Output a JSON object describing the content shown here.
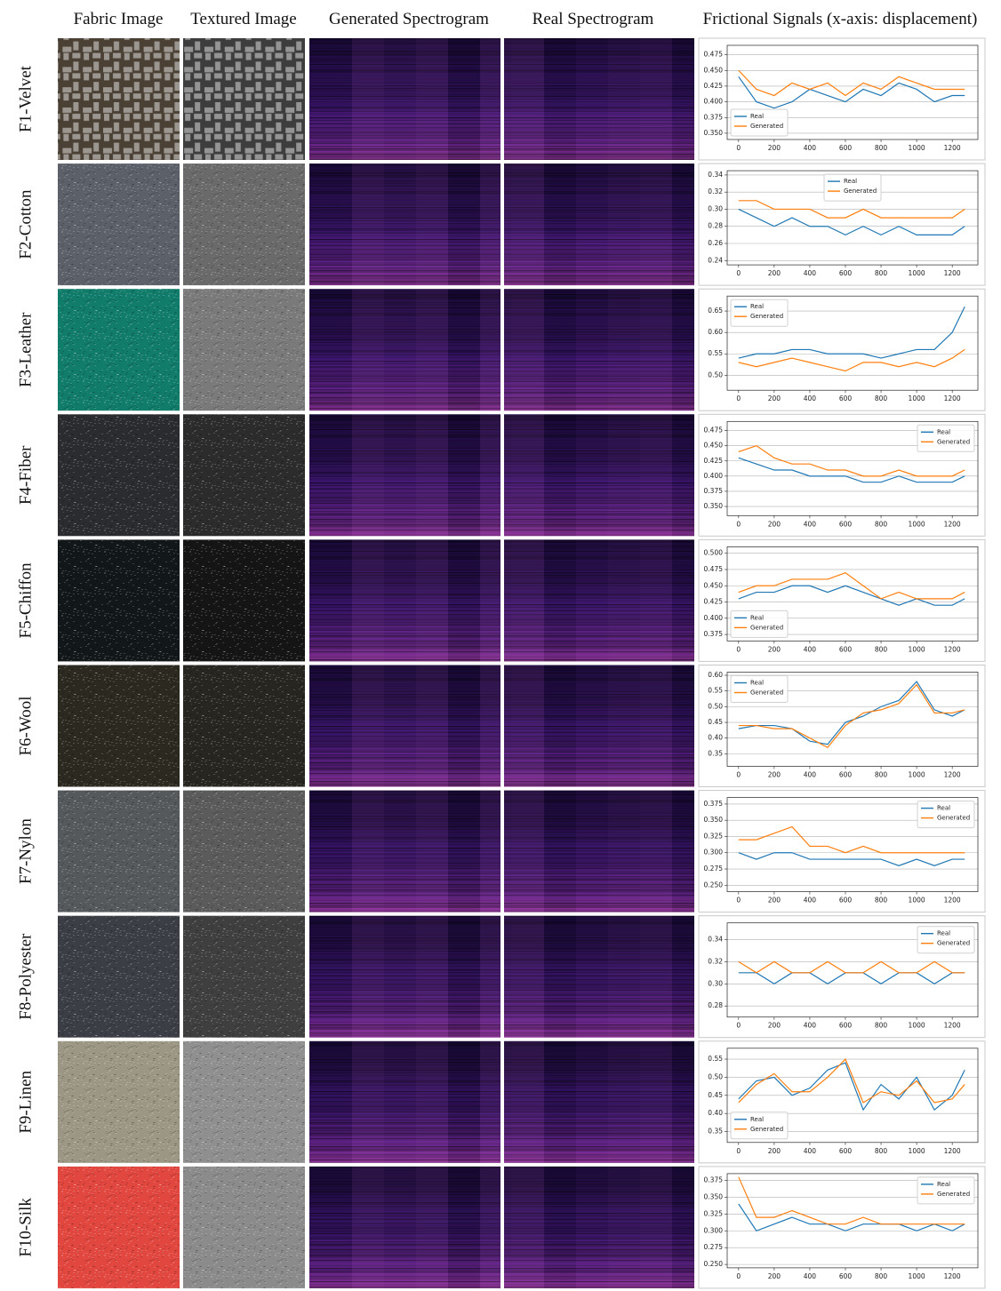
{
  "column_headers": [
    "Fabric Image",
    "Textured Image",
    "Generated Spectrogram",
    "Real Spectrogram",
    "Frictional Signals (x-axis: displacement)"
  ],
  "row_labels": [
    "F1-Velvet",
    "F2-Cotton",
    "F3-Leather",
    "F4-Fiber",
    "F5-Chiffon",
    "F6-Wool",
    "F7-Nylon",
    "F8-Polyester",
    "F9-Linen",
    "F10-Silk"
  ],
  "chart_data": [
    {
      "type": "line",
      "x": [
        0,
        100,
        200,
        300,
        400,
        500,
        600,
        700,
        800,
        900,
        1000,
        1100,
        1200,
        1270
      ],
      "xlim": [
        -64,
        1344
      ],
      "xticks": [
        0,
        200,
        400,
        600,
        800,
        1000,
        1200
      ],
      "ylim": [
        0.34,
        0.49
      ],
      "yticks": [
        {
          "value": 0.35,
          "label": "0.350"
        },
        0.375,
        {
          "value": 0.4,
          "label": "0.400"
        },
        0.425,
        {
          "value": 0.45,
          "label": "0.450"
        },
        0.475
      ],
      "grid": true,
      "legend": "lower left",
      "series": [
        {
          "name": "Real",
          "color": "#1f77b4",
          "values": [
            0.44,
            0.4,
            0.39,
            0.4,
            0.42,
            0.41,
            0.4,
            0.42,
            0.41,
            0.43,
            0.42,
            0.4,
            0.41,
            0.41
          ]
        },
        {
          "name": "Generated",
          "color": "#ff7f0e",
          "values": [
            0.45,
            0.42,
            0.41,
            0.43,
            0.42,
            0.43,
            0.41,
            0.43,
            0.42,
            0.44,
            0.43,
            0.42,
            0.42,
            0.42
          ]
        }
      ]
    },
    {
      "type": "line",
      "x": [
        0,
        100,
        200,
        300,
        400,
        500,
        600,
        700,
        800,
        900,
        1000,
        1100,
        1200,
        1270
      ],
      "xlim": [
        -64,
        1344
      ],
      "xticks": [
        0,
        200,
        400,
        600,
        800,
        1000,
        1200
      ],
      "ylim": [
        0.235,
        0.345
      ],
      "yticks": [
        0.24,
        0.26,
        0.28,
        {
          "value": 0.3,
          "label": "0.30"
        },
        0.32,
        0.34
      ],
      "grid": true,
      "legend": "upper center",
      "series": [
        {
          "name": "Real",
          "color": "#1f77b4",
          "values": [
            0.3,
            0.29,
            0.28,
            0.29,
            0.28,
            0.28,
            0.27,
            0.28,
            0.27,
            0.28,
            0.27,
            0.27,
            0.27,
            0.28
          ]
        },
        {
          "name": "Generated",
          "color": "#ff7f0e",
          "values": [
            0.31,
            0.31,
            0.3,
            0.3,
            0.3,
            0.29,
            0.29,
            0.3,
            0.29,
            0.29,
            0.29,
            0.29,
            0.29,
            0.3
          ]
        }
      ]
    },
    {
      "type": "line",
      "x": [
        0,
        100,
        200,
        300,
        400,
        500,
        600,
        700,
        800,
        900,
        1000,
        1100,
        1200,
        1270
      ],
      "xlim": [
        -64,
        1344
      ],
      "xticks": [
        0,
        200,
        400,
        600,
        800,
        1000,
        1200
      ],
      "ylim": [
        0.465,
        0.685
      ],
      "yticks": [
        {
          "value": 0.5,
          "label": "0.50"
        },
        0.55,
        {
          "value": 0.6,
          "label": "0.60"
        },
        0.65
      ],
      "grid": true,
      "legend": "upper left",
      "series": [
        {
          "name": "Real",
          "color": "#1f77b4",
          "values": [
            0.54,
            0.55,
            0.55,
            0.56,
            0.56,
            0.55,
            0.55,
            0.55,
            0.54,
            0.55,
            0.56,
            0.56,
            0.6,
            0.66
          ]
        },
        {
          "name": "Generated",
          "color": "#ff7f0e",
          "values": [
            0.53,
            0.52,
            0.53,
            0.54,
            0.53,
            0.52,
            0.51,
            0.53,
            0.53,
            0.52,
            0.53,
            0.52,
            0.54,
            0.56
          ]
        }
      ]
    },
    {
      "type": "line",
      "x": [
        0,
        100,
        200,
        300,
        400,
        500,
        600,
        700,
        800,
        900,
        1000,
        1100,
        1200,
        1270
      ],
      "xlim": [
        -64,
        1344
      ],
      "xticks": [
        0,
        200,
        400,
        600,
        800,
        1000,
        1200
      ],
      "ylim": [
        0.335,
        0.49
      ],
      "yticks": [
        {
          "value": 0.35,
          "label": "0.350"
        },
        0.375,
        {
          "value": 0.4,
          "label": "0.400"
        },
        0.425,
        {
          "value": 0.45,
          "label": "0.450"
        },
        0.475
      ],
      "grid": true,
      "legend": "upper right",
      "series": [
        {
          "name": "Real",
          "color": "#1f77b4",
          "values": [
            0.43,
            0.42,
            0.41,
            0.41,
            0.4,
            0.4,
            0.4,
            0.39,
            0.39,
            0.4,
            0.39,
            0.39,
            0.39,
            0.4
          ]
        },
        {
          "name": "Generated",
          "color": "#ff7f0e",
          "values": [
            0.44,
            0.45,
            0.43,
            0.42,
            0.42,
            0.41,
            0.41,
            0.4,
            0.4,
            0.41,
            0.4,
            0.4,
            0.4,
            0.41
          ]
        }
      ]
    },
    {
      "type": "line",
      "x": [
        0,
        100,
        200,
        300,
        400,
        500,
        600,
        700,
        800,
        900,
        1000,
        1100,
        1200,
        1270
      ],
      "xlim": [
        -64,
        1344
      ],
      "xticks": [
        0,
        200,
        400,
        600,
        800,
        1000,
        1200
      ],
      "ylim": [
        0.365,
        0.51
      ],
      "yticks": [
        0.375,
        {
          "value": 0.4,
          "label": "0.400"
        },
        0.425,
        {
          "value": 0.45,
          "label": "0.450"
        },
        0.475,
        {
          "value": 0.5,
          "label": "0.500"
        }
      ],
      "grid": true,
      "legend": "lower left",
      "series": [
        {
          "name": "Real",
          "color": "#1f77b4",
          "values": [
            0.43,
            0.44,
            0.44,
            0.45,
            0.45,
            0.44,
            0.45,
            0.44,
            0.43,
            0.42,
            0.43,
            0.42,
            0.42,
            0.43
          ]
        },
        {
          "name": "Generated",
          "color": "#ff7f0e",
          "values": [
            0.44,
            0.45,
            0.45,
            0.46,
            0.46,
            0.46,
            0.47,
            0.45,
            0.43,
            0.44,
            0.43,
            0.43,
            0.43,
            0.44
          ]
        }
      ]
    },
    {
      "type": "line",
      "x": [
        0,
        100,
        200,
        300,
        400,
        500,
        600,
        700,
        800,
        900,
        1000,
        1100,
        1200,
        1270
      ],
      "xlim": [
        -64,
        1344
      ],
      "xticks": [
        0,
        200,
        400,
        600,
        800,
        1000,
        1200
      ],
      "ylim": [
        0.31,
        0.61
      ],
      "yticks": [
        0.35,
        {
          "value": 0.4,
          "label": "0.40"
        },
        0.45,
        {
          "value": 0.5,
          "label": "0.50"
        },
        0.55,
        {
          "value": 0.6,
          "label": "0.60"
        }
      ],
      "grid": true,
      "legend": "upper left",
      "series": [
        {
          "name": "Real",
          "color": "#1f77b4",
          "values": [
            0.43,
            0.44,
            0.44,
            0.43,
            0.39,
            0.38,
            0.45,
            0.47,
            0.5,
            0.52,
            0.58,
            0.49,
            0.47,
            0.49
          ]
        },
        {
          "name": "Generated",
          "color": "#ff7f0e",
          "values": [
            0.44,
            0.44,
            0.43,
            0.43,
            0.4,
            0.37,
            0.44,
            0.48,
            0.49,
            0.51,
            0.57,
            0.48,
            0.48,
            0.49
          ]
        }
      ]
    },
    {
      "type": "line",
      "x": [
        0,
        100,
        200,
        300,
        400,
        500,
        600,
        700,
        800,
        900,
        1000,
        1100,
        1200,
        1270
      ],
      "xlim": [
        -64,
        1344
      ],
      "xticks": [
        0,
        200,
        400,
        600,
        800,
        1000,
        1200
      ],
      "ylim": [
        0.24,
        0.385
      ],
      "yticks": [
        {
          "value": 0.25,
          "label": "0.250"
        },
        0.275,
        {
          "value": 0.3,
          "label": "0.300"
        },
        0.325,
        {
          "value": 0.35,
          "label": "0.350"
        },
        0.375
      ],
      "grid": true,
      "legend": "upper right",
      "series": [
        {
          "name": "Real",
          "color": "#1f77b4",
          "values": [
            0.3,
            0.29,
            0.3,
            0.3,
            0.29,
            0.29,
            0.29,
            0.29,
            0.29,
            0.28,
            0.29,
            0.28,
            0.29,
            0.29
          ]
        },
        {
          "name": "Generated",
          "color": "#ff7f0e",
          "values": [
            0.32,
            0.32,
            0.33,
            0.34,
            0.31,
            0.31,
            0.3,
            0.31,
            0.3,
            0.3,
            0.3,
            0.3,
            0.3,
            0.3
          ]
        }
      ]
    },
    {
      "type": "line",
      "x": [
        0,
        100,
        200,
        300,
        400,
        500,
        600,
        700,
        800,
        900,
        1000,
        1100,
        1200,
        1270
      ],
      "xlim": [
        -64,
        1344
      ],
      "xticks": [
        0,
        200,
        400,
        600,
        800,
        1000,
        1200
      ],
      "ylim": [
        0.27,
        0.355
      ],
      "yticks": [
        0.28,
        {
          "value": 0.3,
          "label": "0.30"
        },
        0.32,
        0.34
      ],
      "grid": true,
      "legend": "upper right",
      "series": [
        {
          "name": "Real",
          "color": "#1f77b4",
          "values": [
            0.31,
            0.31,
            0.3,
            0.31,
            0.31,
            0.3,
            0.31,
            0.31,
            0.3,
            0.31,
            0.31,
            0.3,
            0.31,
            0.31
          ]
        },
        {
          "name": "Generated",
          "color": "#ff7f0e",
          "values": [
            0.32,
            0.31,
            0.32,
            0.31,
            0.31,
            0.32,
            0.31,
            0.31,
            0.32,
            0.31,
            0.31,
            0.32,
            0.31,
            0.31
          ]
        }
      ]
    },
    {
      "type": "line",
      "x": [
        0,
        100,
        200,
        300,
        400,
        500,
        600,
        700,
        800,
        900,
        1000,
        1100,
        1200,
        1270
      ],
      "xlim": [
        -64,
        1344
      ],
      "xticks": [
        0,
        200,
        400,
        600,
        800,
        1000,
        1200
      ],
      "ylim": [
        0.32,
        0.58
      ],
      "yticks": [
        0.35,
        {
          "value": 0.4,
          "label": "0.40"
        },
        0.45,
        {
          "value": 0.5,
          "label": "0.50"
        },
        0.55
      ],
      "grid": true,
      "legend": "lower left",
      "series": [
        {
          "name": "Real",
          "color": "#1f77b4",
          "values": [
            0.44,
            0.49,
            0.5,
            0.45,
            0.47,
            0.52,
            0.54,
            0.41,
            0.48,
            0.44,
            0.5,
            0.41,
            0.45,
            0.52
          ]
        },
        {
          "name": "Generated",
          "color": "#ff7f0e",
          "values": [
            0.43,
            0.48,
            0.51,
            0.46,
            0.46,
            0.5,
            0.55,
            0.43,
            0.46,
            0.45,
            0.49,
            0.43,
            0.44,
            0.48
          ]
        }
      ]
    },
    {
      "type": "line",
      "x": [
        0,
        100,
        200,
        300,
        400,
        500,
        600,
        700,
        800,
        900,
        1000,
        1100,
        1200,
        1270
      ],
      "xlim": [
        -64,
        1344
      ],
      "xticks": [
        0,
        200,
        400,
        600,
        800,
        1000,
        1200
      ],
      "ylim": [
        0.245,
        0.385
      ],
      "yticks": [
        {
          "value": 0.25,
          "label": "0.250"
        },
        0.275,
        {
          "value": 0.3,
          "label": "0.300"
        },
        0.325,
        {
          "value": 0.35,
          "label": "0.350"
        },
        0.375
      ],
      "grid": true,
      "legend": "upper right",
      "series": [
        {
          "name": "Real",
          "color": "#1f77b4",
          "values": [
            0.34,
            0.3,
            0.31,
            0.32,
            0.31,
            0.31,
            0.3,
            0.31,
            0.31,
            0.31,
            0.3,
            0.31,
            0.3,
            0.31
          ]
        },
        {
          "name": "Generated",
          "color": "#ff7f0e",
          "values": [
            0.38,
            0.32,
            0.32,
            0.33,
            0.32,
            0.31,
            0.31,
            0.32,
            0.31,
            0.31,
            0.31,
            0.31,
            0.31,
            0.31
          ]
        }
      ]
    }
  ]
}
